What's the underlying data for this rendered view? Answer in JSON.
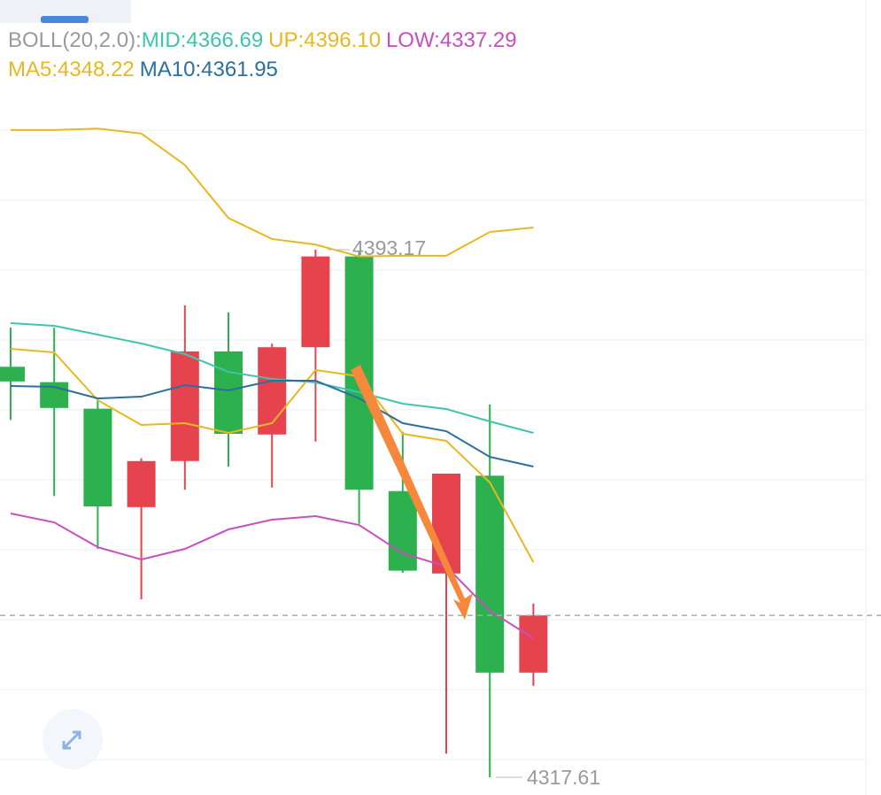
{
  "chart_data": {
    "type": "candlestick",
    "indicator_label": "BOLL(20,2.0):",
    "up_color": "#e5444f",
    "down_color": "#2db14e",
    "ylim": [
      4315.08,
      4428.92
    ],
    "open": [
      4376.4,
      4374.2,
      4370.4,
      4356.3,
      4362.9,
      4378.6,
      4366.7,
      4379.2,
      4392.2,
      4358.6,
      4346.8,
      4360.8,
      4332.6
    ],
    "high": [
      4382.0,
      4382.0,
      4371.6,
      4363.3,
      4385.2,
      4384.2,
      4379.7,
      4393.17,
      4392.9,
      4367.1,
      4361.1,
      4371.0,
      4342.5
    ],
    "low": [
      4368.8,
      4357.9,
      4350.3,
      4343.1,
      4358.8,
      4362.1,
      4359.1,
      4365.7,
      4353.9,
      4346.9,
      4321.0,
      4317.61,
      4330.7
    ],
    "close": [
      4374.3,
      4370.5,
      4356.4,
      4362.9,
      4378.6,
      4366.8,
      4379.2,
      4392.2,
      4358.8,
      4347.2,
      4361.1,
      4332.6,
      4340.8
    ],
    "series": [
      {
        "label": "MID:4366.69",
        "color": "#3fc4b0",
        "values": [
          4382.65,
          4382.27,
          4381.0,
          4379.73,
          4378.21,
          4375.67,
          4374.66,
          4374.15,
          4372.76,
          4371.11,
          4370.35,
          4368.58,
          4366.93
        ]
      },
      {
        "label": "UP:4396.10",
        "color": "#e8b820",
        "values": [
          4410.3,
          4410.3,
          4410.5,
          4409.8,
          4405.3,
          4397.7,
          4394.7,
          4393.9,
          4392.2,
          4392.3,
          4392.3,
          4395.7,
          4396.34
        ]
      },
      {
        "label": "LOW:4337.29",
        "color": "#c94fc0",
        "values": [
          4355.39,
          4354.12,
          4350.57,
          4348.8,
          4350.32,
          4353.11,
          4354.5,
          4355.01,
          4353.74,
          4349.69,
          4347.79,
          4341.45,
          4337.52
        ]
      },
      {
        "label": "MA5:4348.22",
        "color": "#e8b820",
        "values": [
          4378.97,
          4378.46,
          4371.62,
          4368.07,
          4368.32,
          4366.93,
          4368.32,
          4375.93,
          4375.04,
          4366.8,
          4365.79,
          4359.83,
          4348.42
        ]
      },
      {
        "label": "MA10:4361.95",
        "color": "#2a6f9e",
        "values": [
          4373.65,
          4373.52,
          4371.87,
          4372.12,
          4373.77,
          4373.01,
          4374.41,
          4374.41,
          4371.87,
          4368.32,
          4367.18,
          4363.5,
          4362.11
        ]
      }
    ]
  }
}
